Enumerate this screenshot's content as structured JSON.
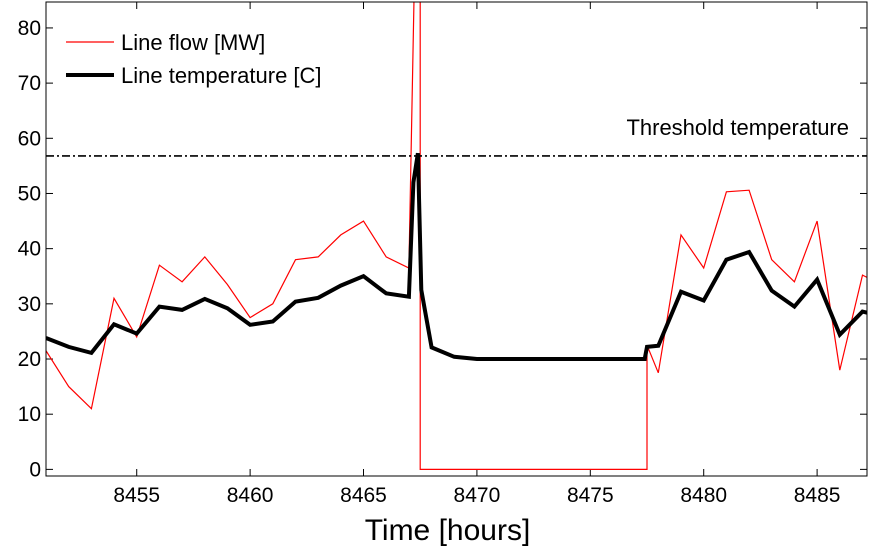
{
  "chart_data": {
    "type": "line",
    "xlabel": "Time [hours]",
    "ylabel": "",
    "xlim": [
      8451,
      8487.2
    ],
    "ylim": [
      -1.2,
      84.7
    ],
    "x_ticks": [
      8455,
      8460,
      8465,
      8470,
      8475,
      8480,
      8485
    ],
    "y_ticks": [
      0,
      10,
      20,
      30,
      40,
      50,
      60,
      70,
      80
    ],
    "grid": false,
    "legend_position": "top-left",
    "colors": {
      "flow": "#ff0000",
      "temperature": "#000000",
      "threshold": "#000000"
    },
    "series": [
      {
        "name": "Line flow [MW]",
        "x": [
          8451,
          8452,
          8453,
          8454,
          8455,
          8456,
          8457,
          8458,
          8459,
          8460,
          8461,
          8462,
          8463,
          8464,
          8465,
          8466,
          8467,
          8467.25,
          8467.5,
          8467.5,
          8477.5,
          8477.5,
          8478,
          8479,
          8480,
          8481,
          8482,
          8483,
          8484,
          8485,
          8486,
          8487,
          8487.2
        ],
        "y": [
          21.5,
          15,
          11,
          31,
          24,
          37,
          34,
          38.5,
          33.5,
          27.5,
          30,
          38,
          38.5,
          42.5,
          45,
          38.5,
          36.5,
          90,
          90,
          0,
          0,
          22.5,
          17.5,
          42.5,
          36.5,
          50.3,
          50.6,
          38,
          34,
          45,
          18,
          35.2,
          34.8
        ]
      },
      {
        "name": "Line temperature [C]",
        "x": [
          8451,
          8452,
          8453,
          8454,
          8455,
          8456,
          8457,
          8458,
          8459,
          8460,
          8461,
          8462,
          8463,
          8464,
          8465,
          8466,
          8467,
          8467.2,
          8467.4,
          8467.55,
          8468,
          8469,
          8470,
          8475,
          8477.4,
          8477.5,
          8478,
          8479,
          8480,
          8481,
          8482,
          8483,
          8484,
          8485,
          8486,
          8487,
          8487.2
        ],
        "y": [
          23.8,
          22.2,
          21.1,
          26.3,
          24.6,
          29.5,
          28.9,
          30.9,
          29.2,
          26.2,
          26.8,
          30.4,
          31.1,
          33.3,
          35,
          31.9,
          31.3,
          52,
          57.3,
          32.5,
          22.1,
          20.4,
          20,
          20,
          20,
          22.2,
          22.4,
          32.2,
          30.6,
          38,
          39.4,
          32.4,
          29.5,
          34.4,
          24.4,
          28.6,
          28.4
        ]
      }
    ],
    "annotations": [
      {
        "text": "Threshold temperature",
        "y": 56.8
      }
    ]
  }
}
